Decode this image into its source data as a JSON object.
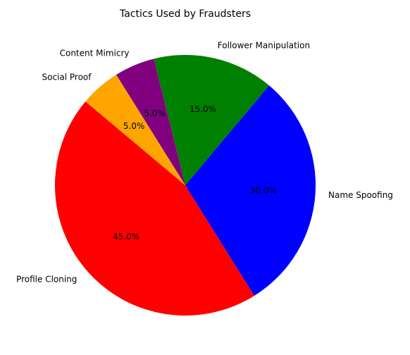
{
  "chart_data": {
    "type": "pie",
    "title": "Tactics Used by Fraudsters",
    "start_angle_deg": 140,
    "direction": "counterclockwise",
    "slices": [
      {
        "label": "Profile Cloning",
        "value": 45,
        "pct_label": "45.0%",
        "color": "#ff0000"
      },
      {
        "label": "Name Spoofing",
        "value": 30,
        "pct_label": "30.0%",
        "color": "#0000ff"
      },
      {
        "label": "Follower Manipulation",
        "value": 15,
        "pct_label": "15.0%",
        "color": "#008000"
      },
      {
        "label": "Content Mimicry",
        "value": 5,
        "pct_label": "5.0%",
        "color": "#800080"
      },
      {
        "label": "Social Proof",
        "value": 5,
        "pct_label": "5.0%",
        "color": "#ffa500"
      }
    ]
  }
}
